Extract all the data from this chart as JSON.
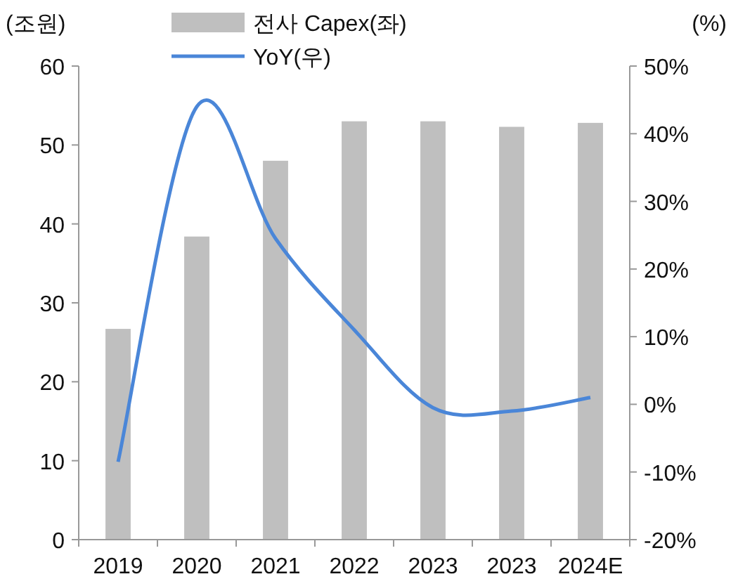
{
  "chart_data": {
    "type": "bar",
    "ylabel": "(조원)",
    "y2label": "(%)",
    "categories": [
      "2019",
      "2020",
      "2021",
      "2022",
      "2023",
      "2023",
      "2024E"
    ],
    "series": [
      {
        "name": "전사 Capex(좌)",
        "color": "#bfbfbf",
        "values": [
          26.7,
          38.4,
          48.0,
          53.0,
          53.0,
          52.3,
          52.8
        ]
      },
      {
        "name": "YoY(우)",
        "type": "line",
        "axis": "y2",
        "color": "#4a86d8",
        "values": [
          -8.5,
          44,
          24.5,
          11,
          -0.5,
          -1,
          1
        ]
      }
    ],
    "ylim": [
      0,
      60
    ],
    "yticks": [
      0,
      10,
      20,
      30,
      40,
      50,
      60
    ],
    "y2lim": [
      -20,
      50
    ],
    "y2ticks": [
      {
        "value": -20,
        "label": "-20%"
      },
      {
        "value": -10,
        "label": "-10%"
      },
      {
        "value": 0,
        "label": "0%"
      },
      {
        "value": 10,
        "label": "10%"
      },
      {
        "value": 20,
        "label": "20%"
      },
      {
        "value": 30,
        "label": "30%"
      },
      {
        "value": 40,
        "label": "40%"
      },
      {
        "value": 50,
        "label": "50%"
      }
    ],
    "legend": "top",
    "grid": false,
    "marker": "none",
    "line_style": "solid"
  }
}
